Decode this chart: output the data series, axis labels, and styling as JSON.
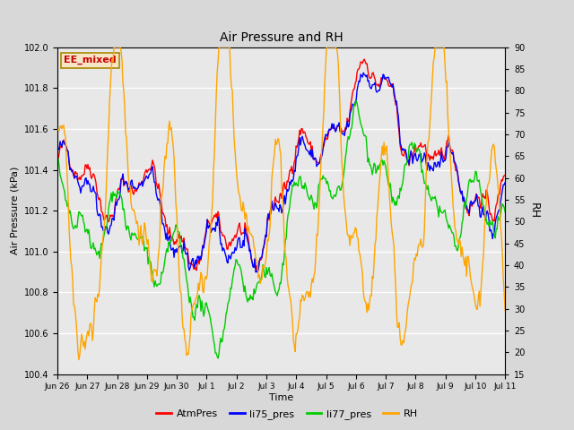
{
  "title": "Air Pressure and RH",
  "xlabel": "Time",
  "ylabel_left": "Air Pressure (kPa)",
  "ylabel_right": "RH",
  "annotation": "EE_mixed",
  "ylim_left": [
    100.4,
    102.0
  ],
  "ylim_right": [
    15,
    90
  ],
  "yticks_left": [
    100.4,
    100.6,
    100.8,
    101.0,
    101.2,
    101.4,
    101.6,
    101.8,
    102.0
  ],
  "yticks_right": [
    15,
    20,
    25,
    30,
    35,
    40,
    45,
    50,
    55,
    60,
    65,
    70,
    75,
    80,
    85,
    90
  ],
  "xtick_labels": [
    "Jun 26",
    "Jun 27",
    "Jun 28",
    "Jun 29",
    "Jun 30",
    "Jul 1",
    "Jul 2",
    "Jul 3",
    "Jul 4",
    "Jul 5",
    "Jul 6",
    "Jul 7",
    "Jul 8",
    "Jul 9",
    "Jul 10",
    "Jul 11"
  ],
  "colors": {
    "AtmPres": "#FF0000",
    "li75_pres": "#0000FF",
    "li77_pres": "#00CC00",
    "RH": "#FFA500"
  },
  "legend_labels": [
    "AtmPres",
    "li75_pres",
    "li77_pres",
    "RH"
  ],
  "bg_color": "#D8D8D8",
  "plot_bg_color": "#E8E8E8",
  "grid_color": "#FFFFFF",
  "linewidth": 1.0,
  "n_points": 500,
  "seed": 42,
  "figsize": [
    6.4,
    4.8
  ],
  "dpi": 100
}
